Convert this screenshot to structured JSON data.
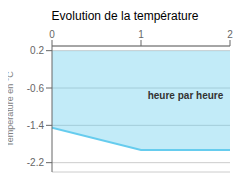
{
  "chart_data": {
    "type": "area",
    "title": "Evolution de la température",
    "ylabel": "Température en °C",
    "x": [
      0,
      1.0,
      2.0
    ],
    "series": [
      {
        "values": [
          -1.45,
          -1.93,
          -1.93
        ],
        "upper": [
          0.2,
          0.2,
          0.2
        ],
        "color": "#66ccee"
      }
    ],
    "xlim": [
      0,
      2
    ],
    "xticks": [
      0,
      1,
      2
    ],
    "ylim": [
      -2.4,
      0.3
    ],
    "yticks": [
      0.2,
      -0.6,
      -1.4,
      -2.2
    ],
    "grid": true,
    "annotations": [
      {
        "text": "heure par heure",
        "x": 1.5,
        "y": -0.75
      }
    ]
  }
}
